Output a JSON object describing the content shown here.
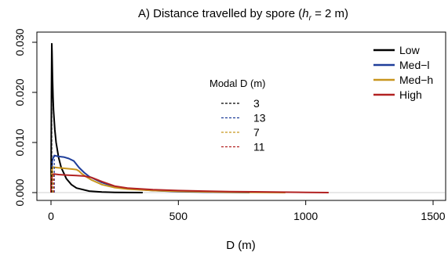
{
  "chart_data": {
    "type": "line",
    "title_prefix": "A) Distance travelled by spore (",
    "title_var": "h",
    "title_sub": "r",
    "title_suffix": " = 2 m)",
    "xlabel": "D (m)",
    "ylabel": "",
    "xlim": [
      0,
      1500
    ],
    "ylim": [
      0,
      0.03
    ],
    "x_ticks": [
      0,
      500,
      1000,
      1500
    ],
    "y_ticks": [
      0.0,
      0.01,
      0.02,
      0.03
    ],
    "x_tick_labels": [
      "0",
      "500",
      "1000",
      "1500"
    ],
    "y_tick_labels": [
      "0.000",
      "0.010",
      "0.020",
      "0.030"
    ],
    "legend": {
      "placement": "top-right",
      "entries": [
        "Low",
        "Med−l",
        "Med−h",
        "High"
      ]
    },
    "modal_legend": {
      "title": "Modal D (m)",
      "entries": [
        "3",
        "13",
        "7",
        "11"
      ]
    },
    "series": [
      {
        "name": "Low",
        "color": "#000000",
        "modal_d": 3,
        "x": [
          0,
          2,
          3,
          4,
          6,
          8,
          10,
          15,
          20,
          30,
          40,
          60,
          80,
          100,
          150,
          200,
          250,
          300,
          360
        ],
        "y": [
          0,
          0.02,
          0.0297,
          0.028,
          0.023,
          0.019,
          0.0165,
          0.0125,
          0.01,
          0.007,
          0.005,
          0.0028,
          0.0016,
          0.0009,
          0.0003,
          0.00012,
          5e-05,
          2e-05,
          0.0
        ]
      },
      {
        "name": "Med−l",
        "color": "#1f3e9a",
        "modal_d": 13,
        "x": [
          0,
          5,
          13,
          30,
          50,
          70,
          90,
          110,
          130,
          150,
          200,
          250,
          300,
          400,
          500,
          600,
          700,
          780
        ],
        "y": [
          0,
          0.0065,
          0.0074,
          0.0072,
          0.0071,
          0.0068,
          0.0063,
          0.005,
          0.004,
          0.0032,
          0.002,
          0.0012,
          0.0008,
          0.0004,
          0.0002,
          0.0001,
          4e-05,
          0.0
        ]
      },
      {
        "name": "Med−h",
        "color": "#c8961e",
        "modal_d": 7,
        "x": [
          0,
          3,
          7,
          20,
          40,
          60,
          80,
          100,
          110,
          120,
          140,
          160,
          200,
          250,
          300,
          400,
          500,
          600,
          700,
          920
        ],
        "y": [
          0,
          0.0045,
          0.0051,
          0.005,
          0.0049,
          0.0048,
          0.0047,
          0.0046,
          0.0043,
          0.0038,
          0.0031,
          0.0025,
          0.0016,
          0.001,
          0.0007,
          0.0004,
          0.00025,
          0.00015,
          8e-05,
          0.0
        ]
      },
      {
        "name": "High",
        "color": "#b22222",
        "modal_d": 11,
        "x": [
          0,
          4,
          11,
          30,
          60,
          100,
          130,
          160,
          200,
          250,
          300,
          400,
          500,
          600,
          700,
          800,
          900,
          1000,
          1090
        ],
        "y": [
          0,
          0.0035,
          0.0037,
          0.0036,
          0.0035,
          0.0034,
          0.0033,
          0.003,
          0.0022,
          0.0013,
          0.0009,
          0.0006,
          0.0004,
          0.0003,
          0.0002,
          0.00015,
          0.0001,
          5e-05,
          0.0
        ]
      }
    ]
  }
}
